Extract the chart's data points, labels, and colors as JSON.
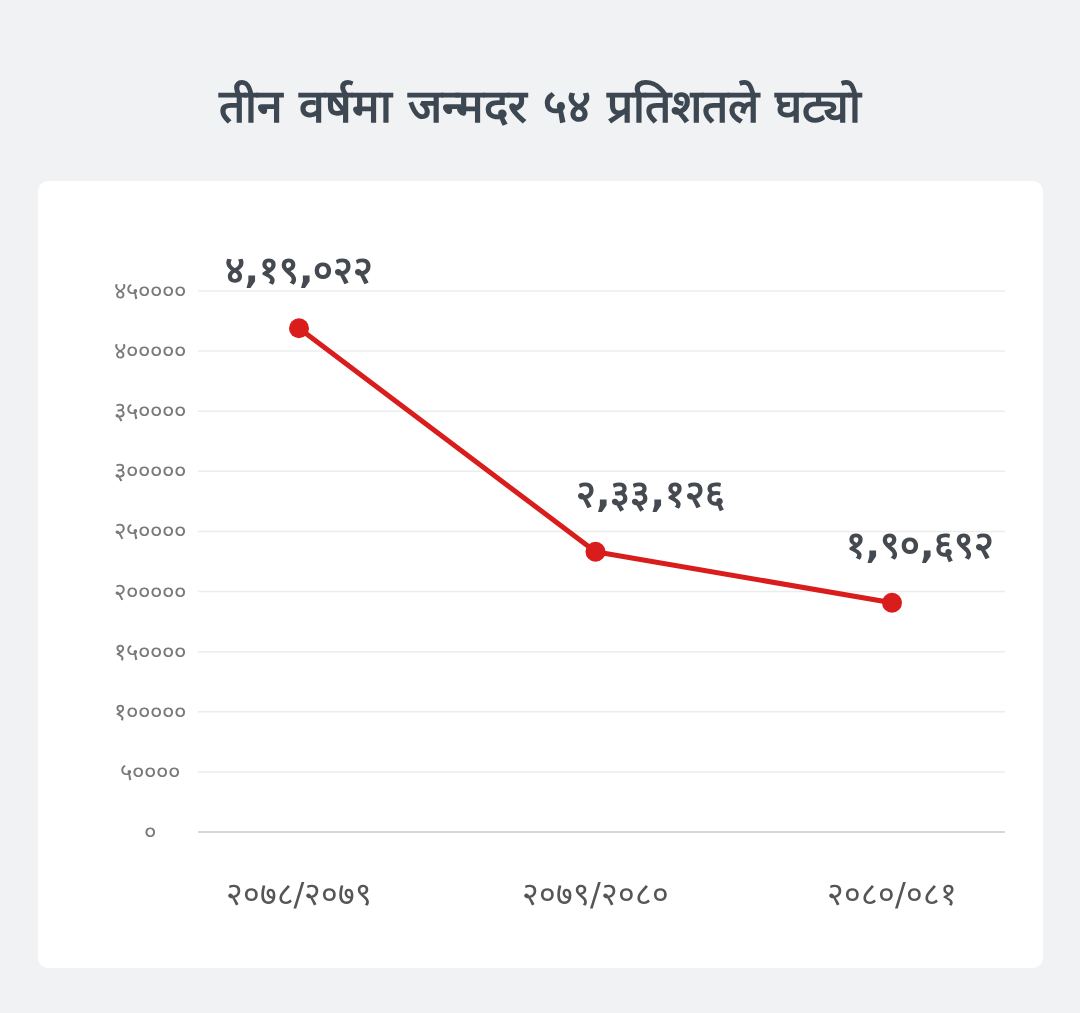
{
  "chart_data": {
    "type": "line",
    "title": "तीन वर्षमा जन्मदर ५४ प्रतिशतले घट्यो",
    "categories": [
      "२०७८/२०७९",
      "२०७९/२०८०",
      "२०८०/०८१"
    ],
    "values": [
      419022,
      233126,
      190692
    ],
    "value_labels": [
      "४,१९,०२२",
      "२,३३,१२६",
      "१,९०,६९२"
    ],
    "color": "#d91c1c",
    "marker": "circle",
    "grid": "y",
    "ylim": [
      0,
      450000
    ],
    "yticks": [
      {
        "value": 0,
        "label": "०"
      },
      {
        "value": 50000,
        "label": "५००००"
      },
      {
        "value": 100000,
        "label": "१०००००"
      },
      {
        "value": 150000,
        "label": "१५००००"
      },
      {
        "value": 200000,
        "label": "२०००००"
      },
      {
        "value": 250000,
        "label": "२५००००"
      },
      {
        "value": 300000,
        "label": "३०००००"
      },
      {
        "value": 350000,
        "label": "३५००००"
      },
      {
        "value": 400000,
        "label": "४०००००"
      },
      {
        "value": 450000,
        "label": "४५००००"
      }
    ]
  }
}
